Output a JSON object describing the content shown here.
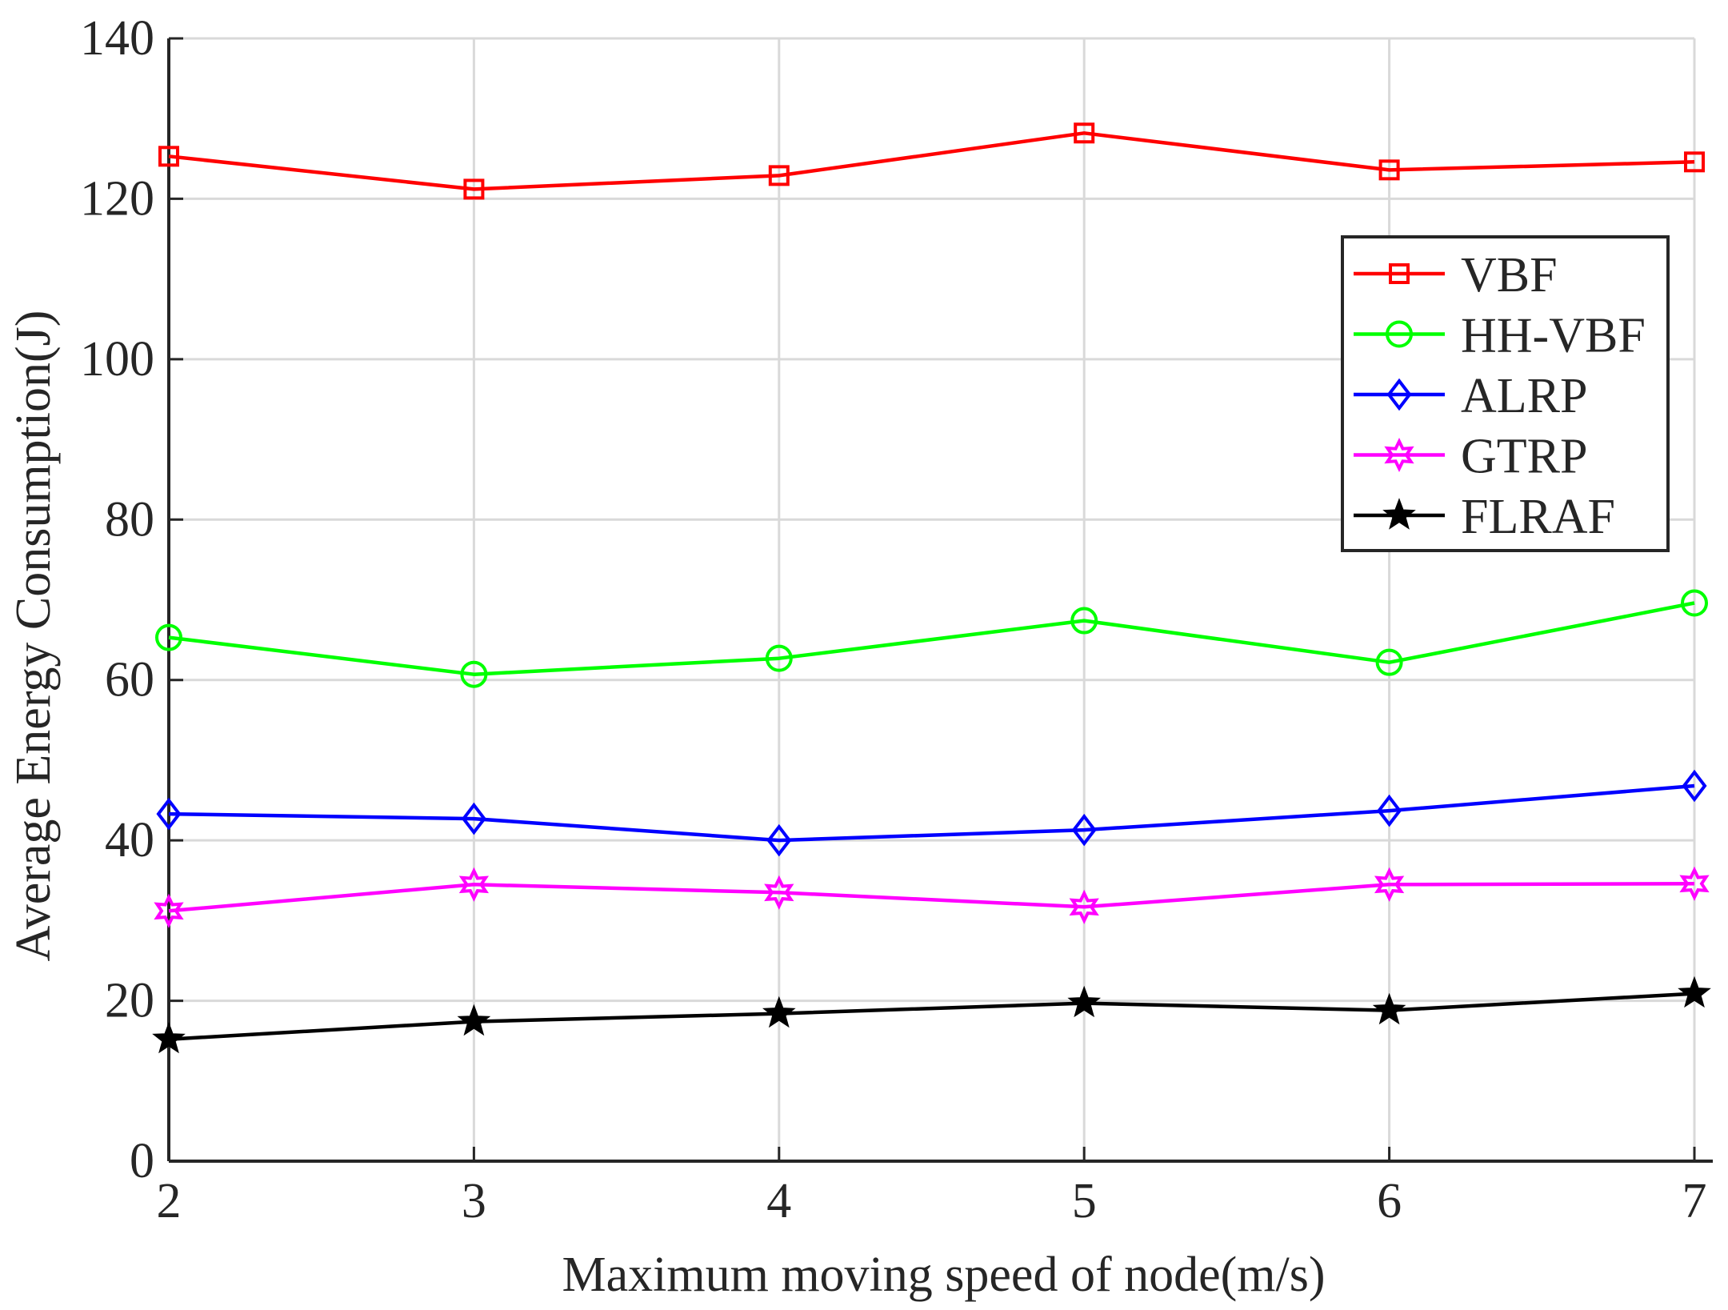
{
  "chart_data": {
    "type": "line",
    "title": "",
    "xlabel": "Maximum moving speed of node(m/s)",
    "ylabel": "Average Energy Consumption(J)",
    "x": [
      2,
      3,
      4,
      5,
      6,
      7
    ],
    "xlim": [
      2,
      7
    ],
    "ylim": [
      0,
      140
    ],
    "xticks": [
      2,
      3,
      4,
      5,
      6,
      7
    ],
    "yticks": [
      0,
      20,
      40,
      60,
      80,
      100,
      120,
      140
    ],
    "grid": true,
    "legend_position": "top-right",
    "series": [
      {
        "name": "VBF",
        "color": "#ff0000",
        "marker": "square",
        "values": [
          125.3,
          121.2,
          122.9,
          128.2,
          123.6,
          124.6
        ]
      },
      {
        "name": "HH-VBF",
        "color": "#00ff00",
        "marker": "circle",
        "values": [
          65.3,
          60.7,
          62.7,
          67.4,
          62.2,
          69.6
        ]
      },
      {
        "name": "ALRP",
        "color": "#0000ff",
        "marker": "diamond",
        "values": [
          43.3,
          42.7,
          40.0,
          41.3,
          43.7,
          46.8
        ]
      },
      {
        "name": "GTRP",
        "color": "#ff00ff",
        "marker": "hexagram",
        "values": [
          31.2,
          34.5,
          33.5,
          31.7,
          34.5,
          34.6
        ]
      },
      {
        "name": "FLRAF",
        "color": "#000000",
        "marker": "pentagram",
        "values": [
          15.2,
          17.4,
          18.4,
          19.7,
          18.8,
          20.9
        ]
      }
    ]
  }
}
